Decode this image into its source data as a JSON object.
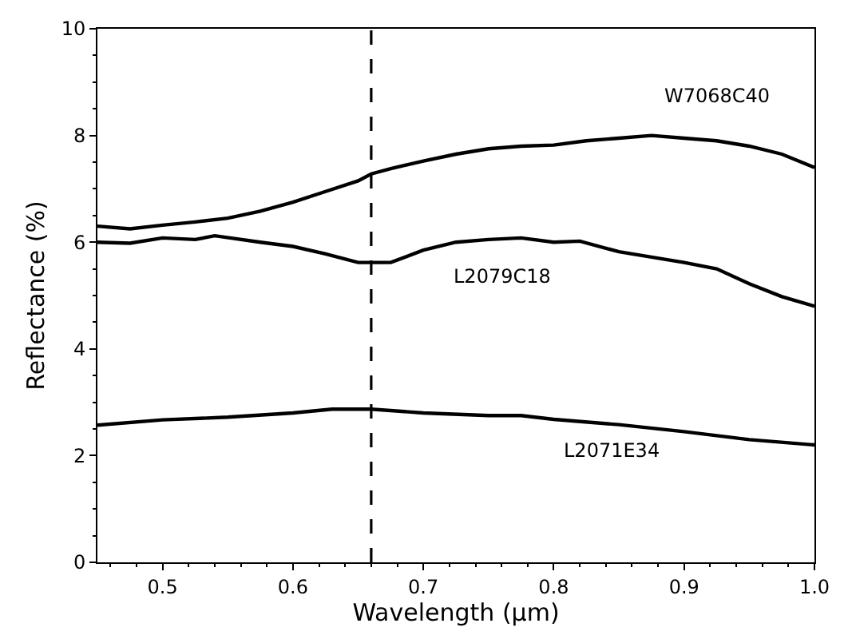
{
  "chart_data": {
    "type": "line",
    "xlabel": "Wavelength (µm)",
    "ylabel": "Reflectance (%)",
    "xlim": [
      0.45,
      1.0
    ],
    "ylim": [
      0,
      10
    ],
    "xticks": [
      0.5,
      0.6,
      0.7,
      0.8,
      0.9,
      {
        "value": 1.0,
        "label": "1.0"
      }
    ],
    "yticks": [
      0,
      2,
      4,
      6,
      8,
      10
    ],
    "legend": false,
    "marker": "none",
    "line_style": "solid",
    "ref_lines": [
      {
        "axis": "x",
        "value": 0.66,
        "color": "#000000",
        "line_style": "dashed"
      }
    ],
    "series": [
      {
        "name": "W7068C40",
        "color": "#000000",
        "x": [
          0.45,
          0.475,
          0.5,
          0.525,
          0.55,
          0.575,
          0.6,
          0.625,
          0.65,
          0.66,
          0.675,
          0.7,
          0.725,
          0.75,
          0.775,
          0.8,
          0.825,
          0.85,
          0.875,
          0.9,
          0.925,
          0.95,
          0.975,
          1.0
        ],
        "values": [
          6.3,
          6.25,
          6.32,
          6.38,
          6.45,
          6.58,
          6.75,
          6.95,
          7.15,
          7.28,
          7.38,
          7.52,
          7.65,
          7.75,
          7.8,
          7.82,
          7.9,
          7.95,
          8.0,
          7.95,
          7.9,
          7.8,
          7.65,
          7.4
        ]
      },
      {
        "name": "L2079C18",
        "color": "#000000",
        "x": [
          0.45,
          0.475,
          0.5,
          0.525,
          0.54,
          0.575,
          0.6,
          0.625,
          0.65,
          0.675,
          0.7,
          0.725,
          0.75,
          0.775,
          0.8,
          0.82,
          0.85,
          0.875,
          0.9,
          0.925,
          0.95,
          0.975,
          1.0
        ],
        "values": [
          6.0,
          5.98,
          6.08,
          6.05,
          6.12,
          6.0,
          5.92,
          5.78,
          5.62,
          5.62,
          5.85,
          6.0,
          6.05,
          6.08,
          6.0,
          6.02,
          5.82,
          5.72,
          5.62,
          5.5,
          5.22,
          4.98,
          4.8
        ]
      },
      {
        "name": "L2071E34",
        "color": "#000000",
        "x": [
          0.45,
          0.5,
          0.55,
          0.6,
          0.63,
          0.66,
          0.7,
          0.75,
          0.775,
          0.8,
          0.85,
          0.9,
          0.95,
          1.0
        ],
        "values": [
          2.57,
          2.67,
          2.72,
          2.8,
          2.87,
          2.87,
          2.8,
          2.75,
          2.75,
          2.68,
          2.58,
          2.45,
          2.3,
          2.2
        ]
      }
    ]
  }
}
